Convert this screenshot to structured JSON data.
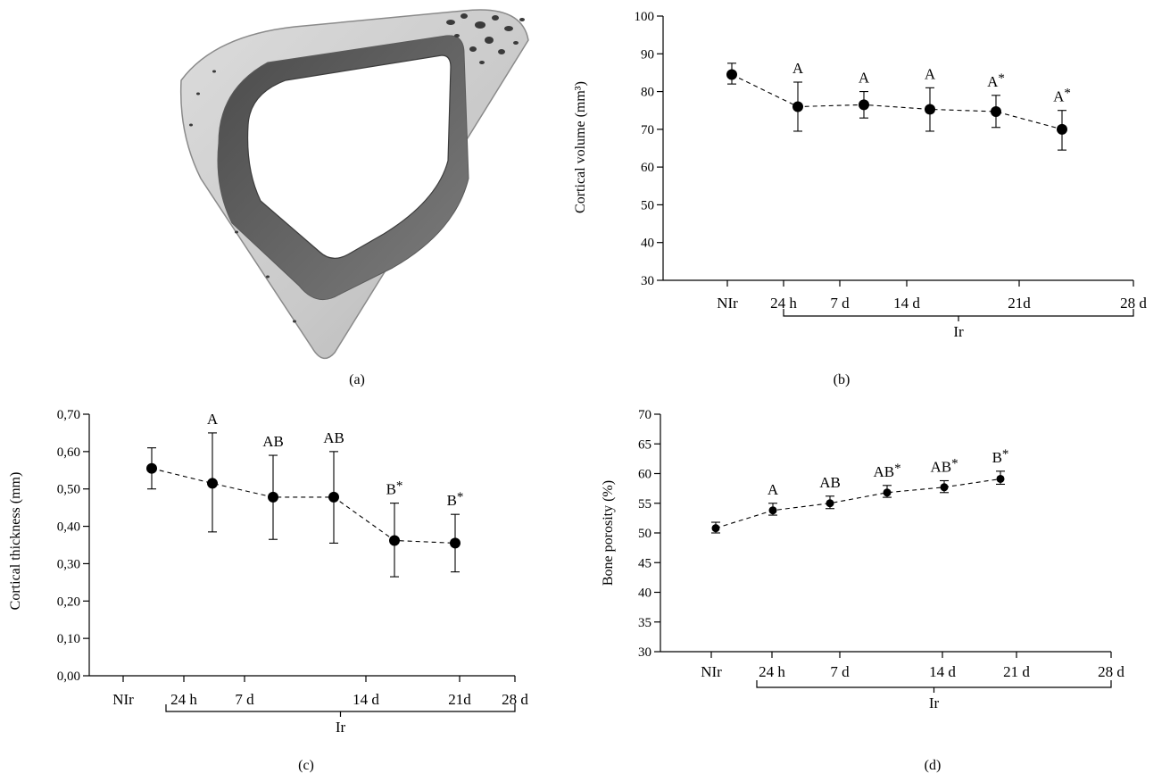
{
  "panels": {
    "a": {
      "label": "(a)",
      "image_icon": "bone-cross-section-micro-ct-icon"
    },
    "b": {
      "label": "(b)"
    },
    "c": {
      "label": "(c)"
    },
    "d": {
      "label": "(d)"
    }
  },
  "chart_data": [
    {
      "panel": "b",
      "type": "line",
      "ylabel": "Cortical volume (mm³)",
      "ylim": [
        30,
        100
      ],
      "yticks": [
        "30",
        "40",
        "50",
        "60",
        "70",
        "80",
        "90",
        "100"
      ],
      "xtick_labels": [
        "NIr",
        "24 h",
        "7 d",
        "14 d",
        "21d",
        "28 d"
      ],
      "group_label": "Ir",
      "grid": false,
      "line_style": "dashed",
      "points": [
        {
          "x": "NIr",
          "y": 84.5,
          "err_low": 82.0,
          "err_high": 87.5,
          "annotation": ""
        },
        {
          "x": "24 h",
          "y": 76.0,
          "err_low": 69.5,
          "err_high": 82.5,
          "annotation": "A"
        },
        {
          "x": "7 d",
          "y": 76.5,
          "err_low": 73.0,
          "err_high": 80.0,
          "annotation": "A"
        },
        {
          "x": "14 d",
          "y": 75.3,
          "err_low": 69.5,
          "err_high": 81.0,
          "annotation": "A"
        },
        {
          "x": "21d",
          "y": 74.7,
          "err_low": 70.5,
          "err_high": 79.0,
          "annotation": "A*"
        },
        {
          "x": "28 d",
          "y": 70.0,
          "err_low": 64.5,
          "err_high": 75.0,
          "annotation": "A*"
        }
      ]
    },
    {
      "panel": "c",
      "type": "line",
      "ylabel": "Cortical thickness (mm)",
      "ylim": [
        0,
        0.7
      ],
      "yticks": [
        "0,00",
        "0,10",
        "0,20",
        "0,30",
        "0,40",
        "0,50",
        "0,60",
        "0,70"
      ],
      "xtick_labels": [
        "NIr",
        "24 h",
        "7 d",
        "14 d",
        "21d",
        "28 d"
      ],
      "group_label": "Ir",
      "grid": false,
      "line_style": "dashed",
      "points": [
        {
          "x": "NIr",
          "y": 0.555,
          "err_low": 0.5,
          "err_high": 0.61,
          "annotation": ""
        },
        {
          "x": "24 h",
          "y": 0.515,
          "err_low": 0.385,
          "err_high": 0.65,
          "annotation": "A"
        },
        {
          "x": "7 d",
          "y": 0.478,
          "err_low": 0.365,
          "err_high": 0.59,
          "annotation": "AB"
        },
        {
          "x": "14 d",
          "y": 0.478,
          "err_low": 0.355,
          "err_high": 0.6,
          "annotation": "AB"
        },
        {
          "x": "21d",
          "y": 0.362,
          "err_low": 0.265,
          "err_high": 0.462,
          "annotation": "B*"
        },
        {
          "x": "28 d",
          "y": 0.355,
          "err_low": 0.278,
          "err_high": 0.432,
          "annotation": "B*"
        }
      ]
    },
    {
      "panel": "d",
      "type": "line",
      "ylabel": "Bone porosity (%)",
      "ylim": [
        30,
        70
      ],
      "yticks": [
        "30",
        "35",
        "40",
        "45",
        "50",
        "55",
        "60",
        "65",
        "70"
      ],
      "xtick_labels": [
        "NIr",
        "24 h",
        "7 d",
        "14 d",
        "21 d",
        "28 d"
      ],
      "group_label": "Ir",
      "grid": false,
      "line_style": "dashed",
      "points": [
        {
          "x": "NIr",
          "y": 50.8,
          "err_low": 50.0,
          "err_high": 51.8,
          "annotation": ""
        },
        {
          "x": "24 h",
          "y": 53.8,
          "err_low": 53.0,
          "err_high": 55.0,
          "annotation": "A"
        },
        {
          "x": "7 d",
          "y": 55.0,
          "err_low": 54.1,
          "err_high": 56.2,
          "annotation": "AB"
        },
        {
          "x": "14 d",
          "y": 56.8,
          "err_low": 56.0,
          "err_high": 58.0,
          "annotation": "AB*"
        },
        {
          "x": "21 d",
          "y": 57.7,
          "err_low": 56.8,
          "err_high": 58.8,
          "annotation": "AB*"
        },
        {
          "x": "28 d",
          "y": 59.1,
          "err_low": 58.2,
          "err_high": 60.4,
          "annotation": "B*"
        }
      ]
    }
  ]
}
